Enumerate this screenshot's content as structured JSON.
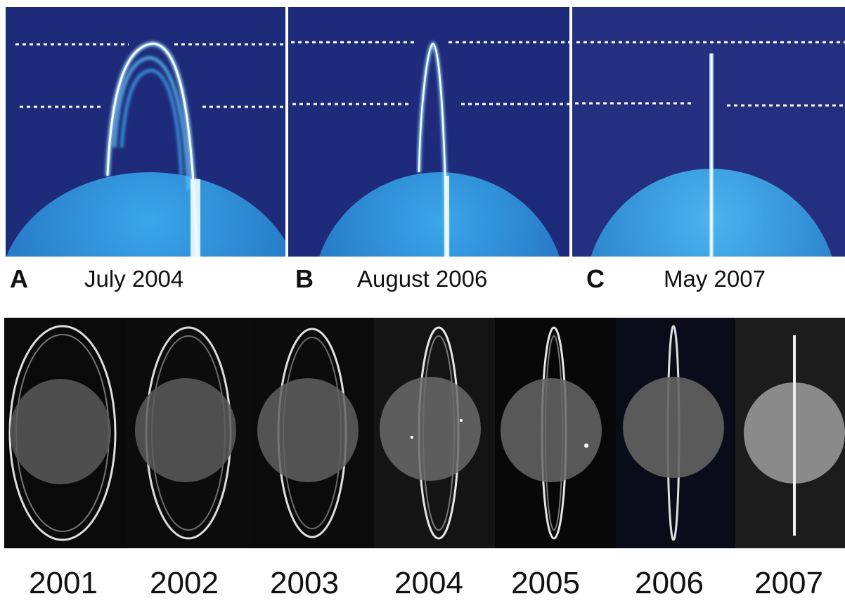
{
  "panels": [
    {
      "letter": "A",
      "date": "July 2004"
    },
    {
      "letter": "B",
      "date": "August 2006"
    },
    {
      "letter": "C",
      "date": "May 2007"
    }
  ],
  "years": [
    "2001",
    "2002",
    "2003",
    "2004",
    "2005",
    "2006",
    "2007"
  ],
  "colors": {
    "panel_bg": "#1d2a78",
    "ring": "#e8f6ff",
    "planet": "#2a8fd6",
    "strip_bg": "#000000"
  }
}
